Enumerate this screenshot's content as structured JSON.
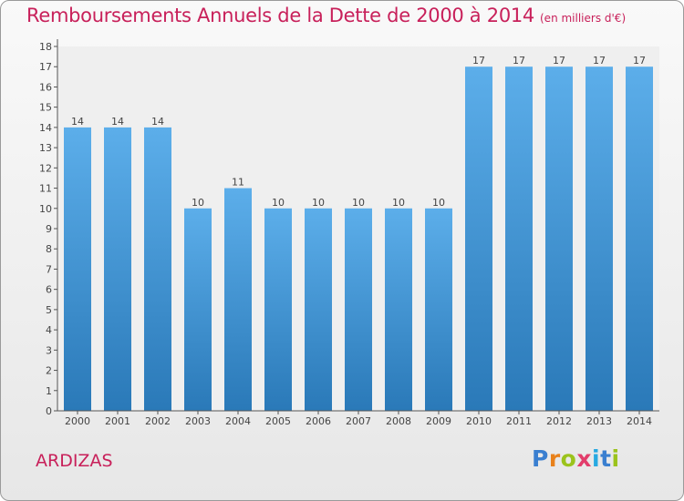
{
  "header": {
    "title": "Remboursements Annuels de la Dette de 2000 à 2014",
    "subtitle": "(en milliers d'€)"
  },
  "footer": {
    "commune": "ARDIZAS",
    "logo_letters": [
      "P",
      "r",
      "o",
      "x",
      "i",
      "t",
      "i"
    ],
    "logo_colors": [
      "#3a7fd0",
      "#e8811b",
      "#9bc31c",
      "#e23d6b",
      "#27a9e1",
      "#3a7fd0",
      "#9bc31c"
    ]
  },
  "colors": {
    "bar_light": "#5caeea",
    "bar_dark": "#2a79b8",
    "accent": "#c8205a",
    "axis": "#555555"
  },
  "chart_data": {
    "type": "bar",
    "categories": [
      "2000",
      "2001",
      "2002",
      "2003",
      "2004",
      "2005",
      "2006",
      "2007",
      "2008",
      "2009",
      "2010",
      "2011",
      "2012",
      "2013",
      "2014"
    ],
    "values": [
      14,
      14,
      14,
      10,
      11,
      10,
      10,
      10,
      10,
      10,
      17,
      17,
      17,
      17,
      17
    ],
    "yticks": [
      0,
      1,
      2,
      3,
      4,
      5,
      6,
      7,
      8,
      9,
      10,
      11,
      12,
      13,
      14,
      15,
      16,
      17,
      18
    ],
    "ylim": [
      0,
      18
    ],
    "xlabel": "",
    "ylabel": "",
    "grid": false,
    "legend": "none"
  }
}
